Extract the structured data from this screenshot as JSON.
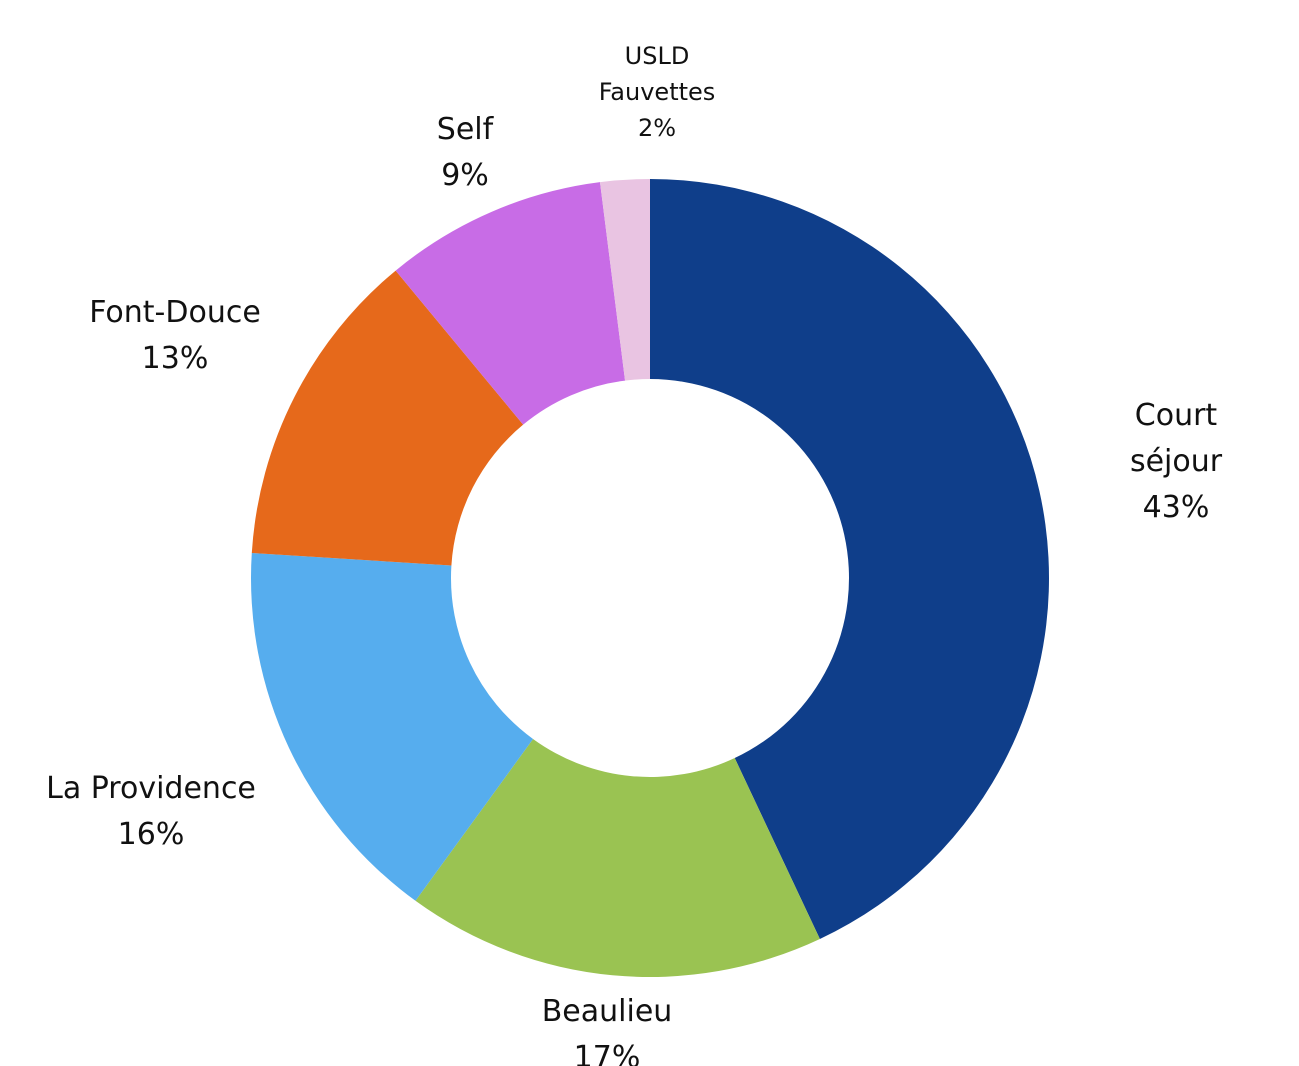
{
  "chart_data": {
    "type": "donut",
    "categories": [
      "Court séjour",
      "Beaulieu",
      "La Providence",
      "Font-Douce",
      "Self",
      "USLD Fauvettes"
    ],
    "values": [
      43,
      17,
      16,
      13,
      9,
      2
    ],
    "value_labels": [
      "43%",
      "17%",
      "16%",
      "13%",
      "9%",
      "2%"
    ],
    "colors": [
      "#0f3e8a",
      "#9ac352",
      "#56adee",
      "#e6691b",
      "#c86ce6",
      "#e9c4e2"
    ]
  }
}
